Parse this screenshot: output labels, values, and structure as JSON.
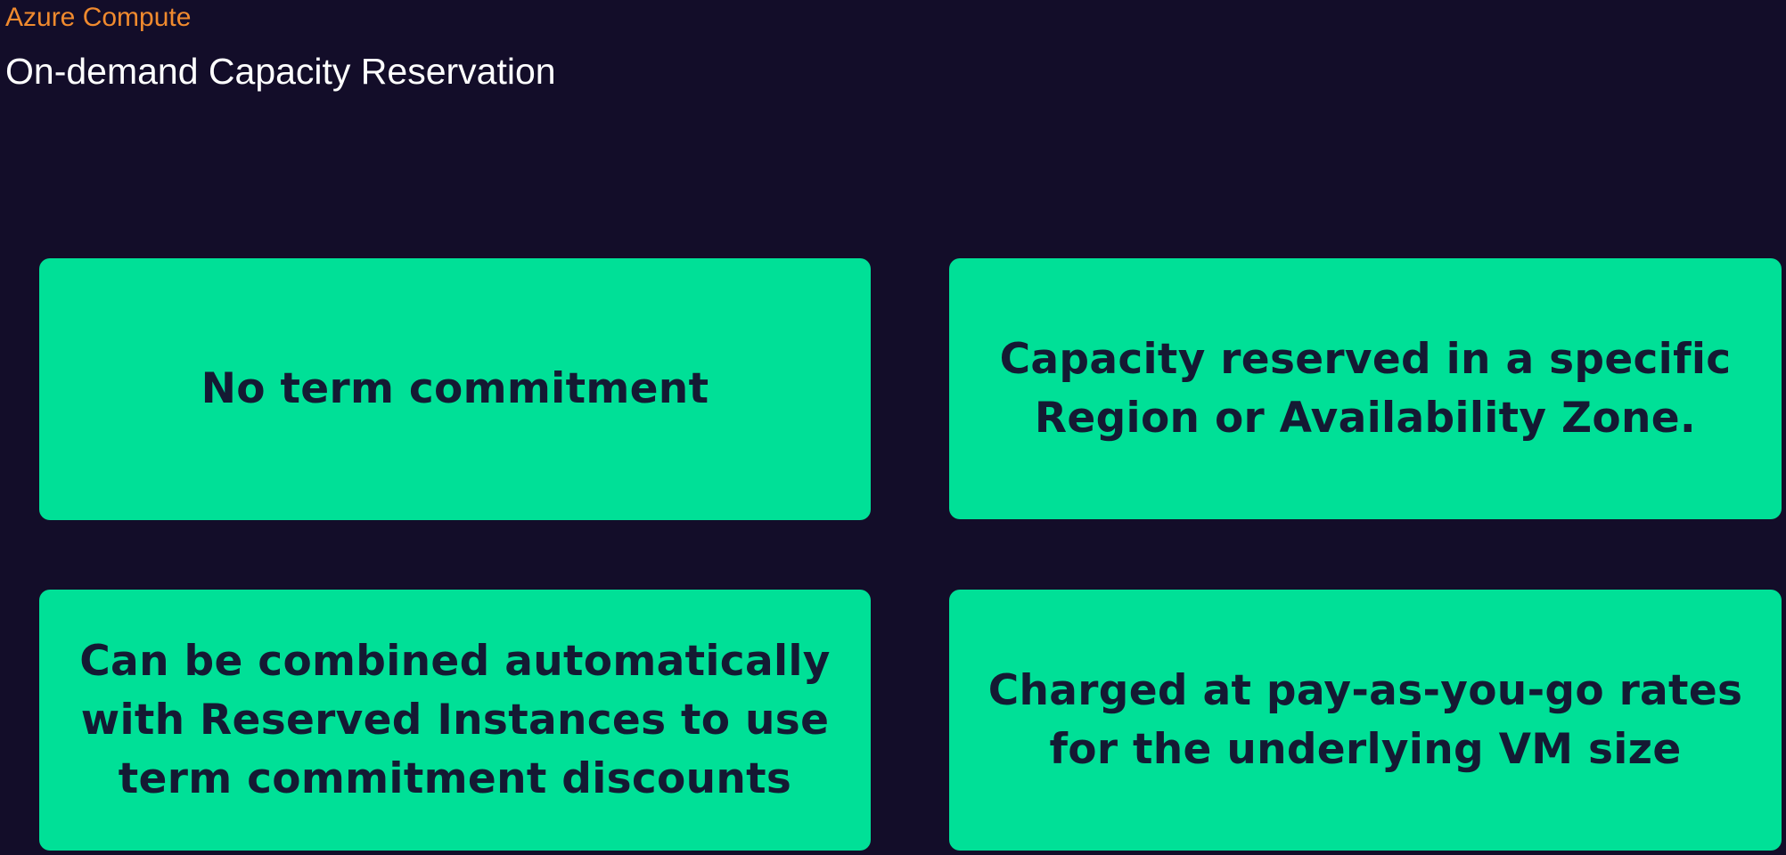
{
  "header": {
    "category": "Azure Compute",
    "title": "On-demand Capacity Reservation"
  },
  "cards": [
    {
      "lines": [
        "No term commitment"
      ]
    },
    {
      "lines": [
        "Capacity reserved in a specific",
        "Region or Availability Zone."
      ]
    },
    {
      "lines": [
        "Can be combined automatically",
        "with Reserved Instances to use",
        "term commitment discounts"
      ]
    },
    {
      "lines": [
        "Charged at pay-as-you-go rates",
        "for the underlying VM size"
      ]
    }
  ],
  "colors": {
    "background": "#130d29",
    "accent_orange": "#f08a2e",
    "card_green": "#00e097",
    "card_text": "#141a33"
  }
}
